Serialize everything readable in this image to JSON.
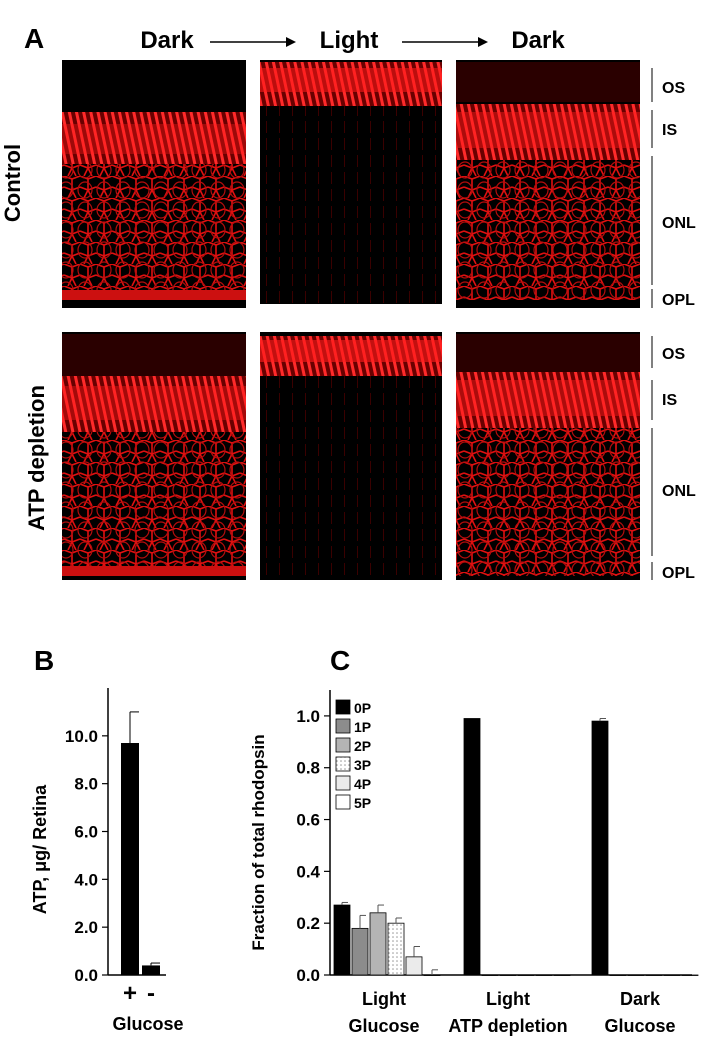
{
  "panel_a": {
    "label": "A",
    "columns": [
      "Dark",
      "Light",
      "Dark"
    ],
    "rows": [
      {
        "label": "Control",
        "layers": [
          "OS",
          "IS",
          "ONL",
          "OPL"
        ]
      },
      {
        "label": "ATP depletion",
        "layers": [
          "OS",
          "IS",
          "ONL",
          "OPL"
        ]
      }
    ],
    "stain_color": "#ff1a1a"
  },
  "chart_data": [
    {
      "panel": "B",
      "type": "bar",
      "categories": [
        "+",
        "-"
      ],
      "values": [
        9.7,
        0.4
      ],
      "errors": [
        1.3,
        0.1
      ],
      "ylabel": "ATP, μg/ Retina",
      "xlabel": "Glucose",
      "yticks": [
        "0.0",
        "2.0",
        "4.0",
        "6.0",
        "8.0",
        "10.0"
      ],
      "ylim": [
        0,
        12
      ],
      "grid": false
    },
    {
      "panel": "C",
      "type": "bar",
      "categories": [
        "Light\nGlucose",
        "Light\nATP depletion",
        "Dark\nGlucose"
      ],
      "category_lines": [
        [
          "Light",
          "Glucose"
        ],
        [
          "Light",
          "ATP depletion"
        ],
        [
          "Dark",
          "Glucose"
        ]
      ],
      "series": [
        {
          "name": "0P",
          "values": [
            0.27,
            0.99,
            0.98
          ],
          "errors": [
            0.01,
            0.0,
            0.01
          ],
          "fill": "#000000"
        },
        {
          "name": "1P",
          "values": [
            0.18,
            0.0,
            0.0
          ],
          "errors": [
            0.05,
            0.0,
            0.0
          ],
          "fill": "#8c8c8c"
        },
        {
          "name": "2P",
          "values": [
            0.24,
            0.0,
            0.0
          ],
          "errors": [
            0.03,
            0.0,
            0.0
          ],
          "fill": "#b4b4b4"
        },
        {
          "name": "3P",
          "values": [
            0.2,
            0.0,
            0.0
          ],
          "errors": [
            0.02,
            0.0,
            0.0
          ],
          "fill": "#d6d6d6"
        },
        {
          "name": "4P",
          "values": [
            0.07,
            0.0,
            0.0
          ],
          "errors": [
            0.04,
            0.0,
            0.0
          ],
          "fill": "#ebebeb"
        },
        {
          "name": "5P",
          "values": [
            0.0,
            0.0,
            0.0
          ],
          "errors": [
            0.02,
            0.0,
            0.0
          ],
          "fill": "#ffffff"
        }
      ],
      "ylabel": "Fraction of total rhodopsin",
      "yticks": [
        "0.0",
        "0.2",
        "0.4",
        "0.6",
        "0.8",
        "1.0"
      ],
      "ylim": [
        0,
        1.1
      ],
      "legend_position": "top-left",
      "grid": false
    }
  ],
  "panel_b_label": "B",
  "panel_c_label": "C"
}
